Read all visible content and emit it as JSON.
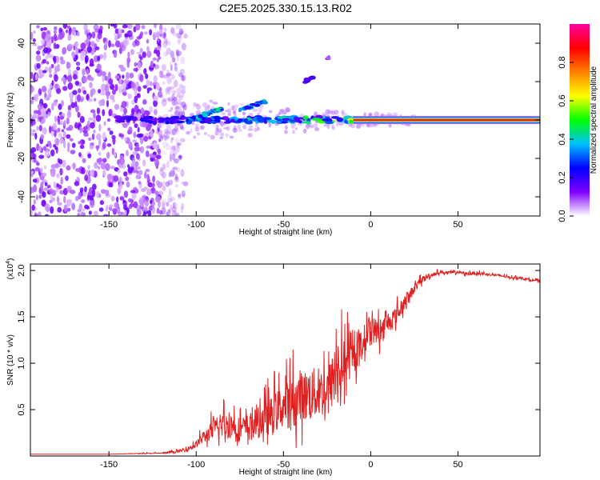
{
  "figure_title": "C2E5.2025.330.15.13.R02",
  "chart_data": [
    {
      "type": "heatmap",
      "name": "spectrogram",
      "xlabel": "Height of straight line (km)",
      "ylabel": "Frequency (Hz)",
      "xlim": [
        -195,
        97
      ],
      "ylim": [
        -50,
        50
      ],
      "xticks": [
        -150,
        -100,
        -50,
        0,
        50
      ],
      "xtick_labels": [
        "-150",
        "-100",
        "-50",
        "0",
        "50"
      ],
      "yticks": [
        -40,
        -20,
        0,
        20,
        40
      ],
      "ytick_labels": [
        "-40",
        "-20",
        "0",
        "20",
        "40"
      ],
      "colorbar": {
        "label": "Normalized spectral amplitude",
        "range": [
          0,
          1
        ],
        "ticks": [
          0.0,
          0.2,
          0.4,
          0.6,
          0.8
        ],
        "tick_labels": [
          "0.0",
          "0.2",
          "0.4",
          "0.6",
          "0.8"
        ]
      },
      "features": {
        "noise_region_x": [
          -195,
          -112
        ],
        "noise_amplitude": 0.05,
        "carrier_frequency": 0,
        "carrier_solid_x": [
          -10,
          97
        ],
        "carrier_solid_amplitude": 0.9,
        "fragmented_carrier_x": [
          -145,
          -10
        ],
        "sidebands": [
          {
            "x": [
              -105,
              -85
            ],
            "freq": [
              0,
              6
            ],
            "amplitude": 0.45
          },
          {
            "x": [
              -75,
              -60
            ],
            "freq": [
              5,
              10
            ],
            "amplitude": 0.4
          },
          {
            "x": [
              -38,
              -33
            ],
            "freq": [
              20,
              22
            ],
            "amplitude": 0.25
          },
          {
            "x": [
              -25,
              -24
            ],
            "freq": [
              32,
              33
            ],
            "amplitude": 0.15
          }
        ]
      }
    },
    {
      "type": "line",
      "name": "snr",
      "xlabel": "Height of straight line (km)",
      "ylabel": "SNR (10 * v/v)",
      "y_multiplier_label": "(x10",
      "y_multiplier_exponent": "4",
      "xlim": [
        -195,
        97
      ],
      "ylim": [
        0,
        2.07
      ],
      "xticks": [
        -150,
        -100,
        -50,
        0,
        50
      ],
      "xtick_labels": [
        "-150",
        "-100",
        "-50",
        "0",
        "50"
      ],
      "yticks": [
        0.5,
        1.0,
        1.5,
        2.0
      ],
      "ytick_labels": [
        "0.5",
        "1.0",
        "1.5",
        "2.0"
      ],
      "series": [
        {
          "name": "SNR",
          "color": "#e02020",
          "x": [
            -195,
            -150,
            -120,
            -112,
            -105,
            -100,
            -95,
            -90,
            -85,
            -80,
            -75,
            -70,
            -65,
            -60,
            -55,
            -50,
            -45,
            -40,
            -35,
            -30,
            -25,
            -20,
            -15,
            -10,
            -5,
            0,
            5,
            10,
            15,
            20,
            25,
            30,
            35,
            40,
            45,
            50,
            55,
            60,
            65,
            70,
            75,
            80,
            85,
            90,
            97
          ],
          "y": [
            0.02,
            0.02,
            0.03,
            0.04,
            0.07,
            0.12,
            0.2,
            0.26,
            0.3,
            0.3,
            0.26,
            0.28,
            0.32,
            0.36,
            0.42,
            0.5,
            0.5,
            0.58,
            0.6,
            0.62,
            0.65,
            0.8,
            0.95,
            1.02,
            1.18,
            1.35,
            1.3,
            1.42,
            1.5,
            1.65,
            1.8,
            1.9,
            1.95,
            1.98,
            1.97,
            1.98,
            1.96,
            1.97,
            1.96,
            1.95,
            1.94,
            1.92,
            1.92,
            1.9,
            1.88
          ],
          "noise_amplitude": [
            0.0,
            0.0,
            0.01,
            0.02,
            0.04,
            0.06,
            0.12,
            0.18,
            0.22,
            0.24,
            0.22,
            0.25,
            0.28,
            0.3,
            0.35,
            0.4,
            0.45,
            0.45,
            0.5,
            0.45,
            0.45,
            0.5,
            0.45,
            0.3,
            0.28,
            0.25,
            0.22,
            0.2,
            0.15,
            0.12,
            0.08,
            0.06,
            0.04,
            0.03,
            0.03,
            0.03,
            0.03,
            0.03,
            0.02,
            0.02,
            0.02,
            0.02,
            0.02,
            0.02,
            0.02
          ]
        }
      ]
    }
  ],
  "colors": {
    "colormap": [
      "#ffffff",
      "#8000ff",
      "#0000ff",
      "#00c0ff",
      "#00ff00",
      "#ffff00",
      "#ff8000",
      "#ff0000",
      "#ff00a0"
    ],
    "snr_line": "#e02020"
  }
}
